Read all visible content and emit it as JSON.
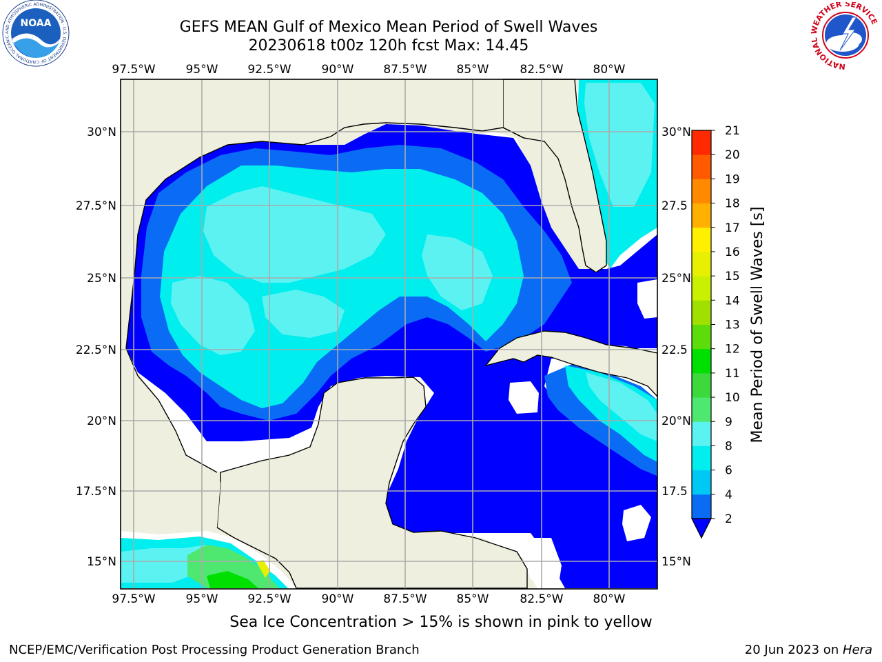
{
  "title_line1": "GEFS MEAN Gulf of Mexico Mean Period of Swell Waves",
  "title_line2": "20230618 t00z 120h fcst   Max: 14.45",
  "lon_labels": [
    "97.5°W",
    "95°W",
    "92.5°W",
    "90°W",
    "87.5°W",
    "85°W",
    "82.5°W",
    "80°W"
  ],
  "lat_labels_left": [
    "30°N",
    "27.5°N",
    "25°N",
    "22.5°N",
    "20°N",
    "17.5°N",
    "15°N"
  ],
  "lat_labels_right": [
    "30°N",
    "27.5",
    "25°N",
    "22.5",
    "20°N",
    "17.5",
    "15°N"
  ],
  "colorbar": {
    "label": "Mean Period of Swell Waves [s]",
    "ticks": [
      "2",
      "4",
      "6",
      "8",
      "9",
      "10",
      "11",
      "12",
      "13",
      "14",
      "15",
      "16",
      "17",
      "18",
      "19",
      "20",
      "21"
    ],
    "colors": [
      "#0a6cf5",
      "#00c8f5",
      "#00eeee",
      "#5cf2f2",
      "#a6f8f8",
      "#4ee870",
      "#3cd83c",
      "#00e000",
      "#5cdc0a",
      "#a0e000",
      "#c8f000",
      "#e6f000",
      "#fff000",
      "#ffd800",
      "#ffb000",
      "#ff8a00",
      "#ff5a00",
      "#ff2a00",
      "#ff0000"
    ],
    "under_color": "#0000ff"
  },
  "legend_colors": {
    "land": "#efefdf",
    "deep": "#0000ff",
    "mid": "#0a6cf5",
    "cyan": "#00eeee",
    "light": "#5cf2f2",
    "green": "#4ee870",
    "nodata": "#ffffff"
  },
  "footer_note": "Sea Ice Concentration > 15% is shown in pink to yellow",
  "footer_left": "NCEP/EMC/Verification Post Processing Product Generation Branch",
  "footer_right_date": "20 Jun 2023 on ",
  "footer_right_host": "Hera",
  "logo_left": {
    "label": "NOAA",
    "ring_text": "NATIONAL OCEANIC AND ATMOSPHERIC ADMINISTRATION · U.S. DEPARTMENT OF COMMERCE"
  },
  "logo_right": {
    "ring_text": "NATIONAL WEATHER SERVICE"
  }
}
